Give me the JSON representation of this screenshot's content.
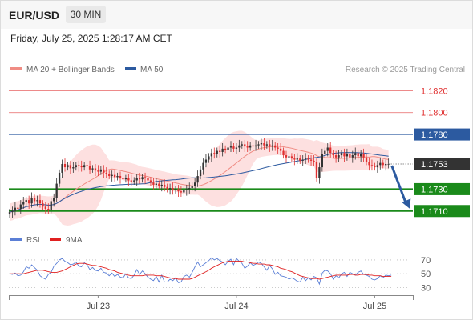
{
  "header": {
    "symbol": "EUR/USD",
    "timeframe": "30 MIN"
  },
  "datetime": "Friday, July 25, 2025 1:28:17 AM CET",
  "legend": {
    "items": [
      {
        "label": "MA 20 + Bollinger Bands",
        "color": "#f08c84"
      },
      {
        "label": "MA 50",
        "color": "#2c5aa0"
      }
    ],
    "credit": "Research © 2025 Trading Central"
  },
  "rsi_legend": {
    "items": [
      {
        "label": "RSI",
        "color": "#5b7fd6"
      },
      {
        "label": "9MA",
        "color": "#e02020"
      }
    ]
  },
  "colors": {
    "bullish": "#333333",
    "bearish": "#e03030",
    "band_fill": "#fde0e0",
    "support": "#1a8a1a",
    "resistance": "#e03030",
    "pivot": "#2c5aa0",
    "last_price": "#333333",
    "arrow": "#2c5aa0"
  },
  "chart_data": [
    {
      "type": "candlestick",
      "symbol": "EUR/USD",
      "timeframe": "30 MIN",
      "x_ticks": [
        "Jul 23",
        "Jul 24",
        "Jul 25"
      ],
      "ylim": [
        1.1693,
        1.1832
      ],
      "last_price": 1.1753,
      "levels": [
        {
          "value": 1.182,
          "label": "1.1820",
          "type": "resistance"
        },
        {
          "value": 1.18,
          "label": "1.1800",
          "type": "resistance"
        },
        {
          "value": 1.178,
          "label": "1.1780",
          "type": "pivot"
        },
        {
          "value": 1.173,
          "label": "1.1730",
          "type": "support"
        },
        {
          "value": 1.171,
          "label": "1.1710",
          "type": "support"
        }
      ],
      "projection": {
        "from": 1.1753,
        "to": 1.171
      },
      "close": [
        1.1709,
        1.171,
        1.1713,
        1.1712,
        1.1716,
        1.1718,
        1.172,
        1.1717,
        1.1722,
        1.1719,
        1.172,
        1.1717,
        1.1714,
        1.1712,
        1.1711,
        1.1719,
        1.1722,
        1.1735,
        1.1745,
        1.1753,
        1.175,
        1.1752,
        1.1749,
        1.175,
        1.1752,
        1.1751,
        1.175,
        1.1752,
        1.1751,
        1.1748,
        1.1749,
        1.1747,
        1.1746,
        1.1748,
        1.1745,
        1.1744,
        1.1742,
        1.1743,
        1.1741,
        1.1742,
        1.174,
        1.1739,
        1.174,
        1.1738,
        1.1737,
        1.1738,
        1.174,
        1.1739,
        1.1741,
        1.174,
        1.1738,
        1.1736,
        1.1734,
        1.1735,
        1.1733,
        1.1734,
        1.1732,
        1.173,
        1.1731,
        1.1729,
        1.173,
        1.1728,
        1.1727,
        1.1729,
        1.173,
        1.1731,
        1.1733,
        1.1736,
        1.1742,
        1.1748,
        1.1754,
        1.1757,
        1.176,
        1.1763,
        1.1762,
        1.1765,
        1.1764,
        1.1767,
        1.1766,
        1.1768,
        1.1769,
        1.1767,
        1.1768,
        1.177,
        1.1771,
        1.1769,
        1.1768,
        1.177,
        1.1769,
        1.177,
        1.1771,
        1.1772,
        1.177,
        1.1771,
        1.1769,
        1.177,
        1.1768,
        1.1767,
        1.1765,
        1.1761,
        1.1759,
        1.176,
        1.1758,
        1.1757,
        1.1758,
        1.1756,
        1.1757,
        1.1758,
        1.1757,
        1.1756,
        1.1755,
        1.174,
        1.175,
        1.1762,
        1.1765,
        1.1768,
        1.1763,
        1.1761,
        1.1759,
        1.1761,
        1.1763,
        1.176,
        1.1762,
        1.1759,
        1.1761,
        1.1763,
        1.176,
        1.1762,
        1.1759,
        1.1755,
        1.1752,
        1.1751,
        1.175,
        1.1752,
        1.1754,
        1.1752,
        1.1753,
        1.1753
      ]
    },
    {
      "type": "line",
      "name": "RSI",
      "yticks": [
        30,
        50,
        70
      ],
      "series_names": [
        "RSI",
        "9MA"
      ],
      "rsi": [
        50,
        49,
        51,
        47,
        48,
        53,
        60,
        58,
        63,
        59,
        55,
        47,
        44,
        42,
        49,
        52,
        61,
        65,
        70,
        72,
        68,
        66,
        63,
        64,
        67,
        61,
        60,
        66,
        63,
        56,
        59,
        55,
        54,
        58,
        52,
        51,
        47,
        51,
        46,
        49,
        45,
        44,
        50,
        44,
        43,
        48,
        56,
        49,
        54,
        50,
        45,
        42,
        40,
        46,
        38,
        48,
        38,
        38,
        42,
        40,
        44,
        37,
        38,
        46,
        48,
        45,
        52,
        60,
        67,
        60,
        63,
        66,
        69,
        73,
        70,
        72,
        69,
        67,
        63,
        68,
        71,
        63,
        72,
        68,
        65,
        58,
        61,
        66,
        62,
        64,
        67,
        65,
        60,
        55,
        62,
        57,
        49,
        52,
        47,
        46,
        45,
        42,
        44,
        42,
        39,
        38,
        45,
        40,
        44,
        41,
        46,
        44,
        35,
        51,
        55,
        54,
        50,
        42,
        47,
        44,
        50,
        52,
        46,
        52,
        50,
        48,
        52,
        54,
        49,
        48,
        46,
        42,
        41,
        43,
        47,
        44,
        48,
        47,
        48
      ],
      "ma9": [
        50,
        50,
        50,
        50,
        50,
        50,
        51,
        52,
        53,
        54,
        55,
        55,
        55,
        54,
        53,
        52,
        52,
        52,
        53,
        54,
        56,
        58,
        60,
        62,
        64,
        65,
        65,
        65,
        64,
        63,
        62,
        62,
        61,
        60,
        59,
        58,
        56,
        55,
        54,
        52,
        51,
        50,
        49,
        48,
        47,
        47,
        47,
        47,
        47,
        48,
        48,
        48,
        48,
        47,
        47,
        47,
        46,
        45,
        44,
        43,
        43,
        42,
        42,
        42,
        42,
        42,
        43,
        45,
        47,
        49,
        51,
        53,
        55,
        58,
        60,
        62,
        64,
        66,
        67,
        68,
        68,
        68,
        68,
        68,
        68,
        67,
        67,
        66,
        65,
        65,
        64,
        64,
        64,
        63,
        63,
        62,
        61,
        60,
        58,
        57,
        56,
        54,
        53,
        51,
        49,
        47,
        46,
        45,
        44,
        43,
        43,
        43,
        42,
        43,
        44,
        45,
        46,
        47,
        48,
        48,
        48,
        48,
        48,
        49,
        49,
        48,
        48,
        49,
        49,
        49,
        48,
        48,
        47,
        47,
        47,
        46,
        46,
        46,
        46
      ]
    }
  ]
}
